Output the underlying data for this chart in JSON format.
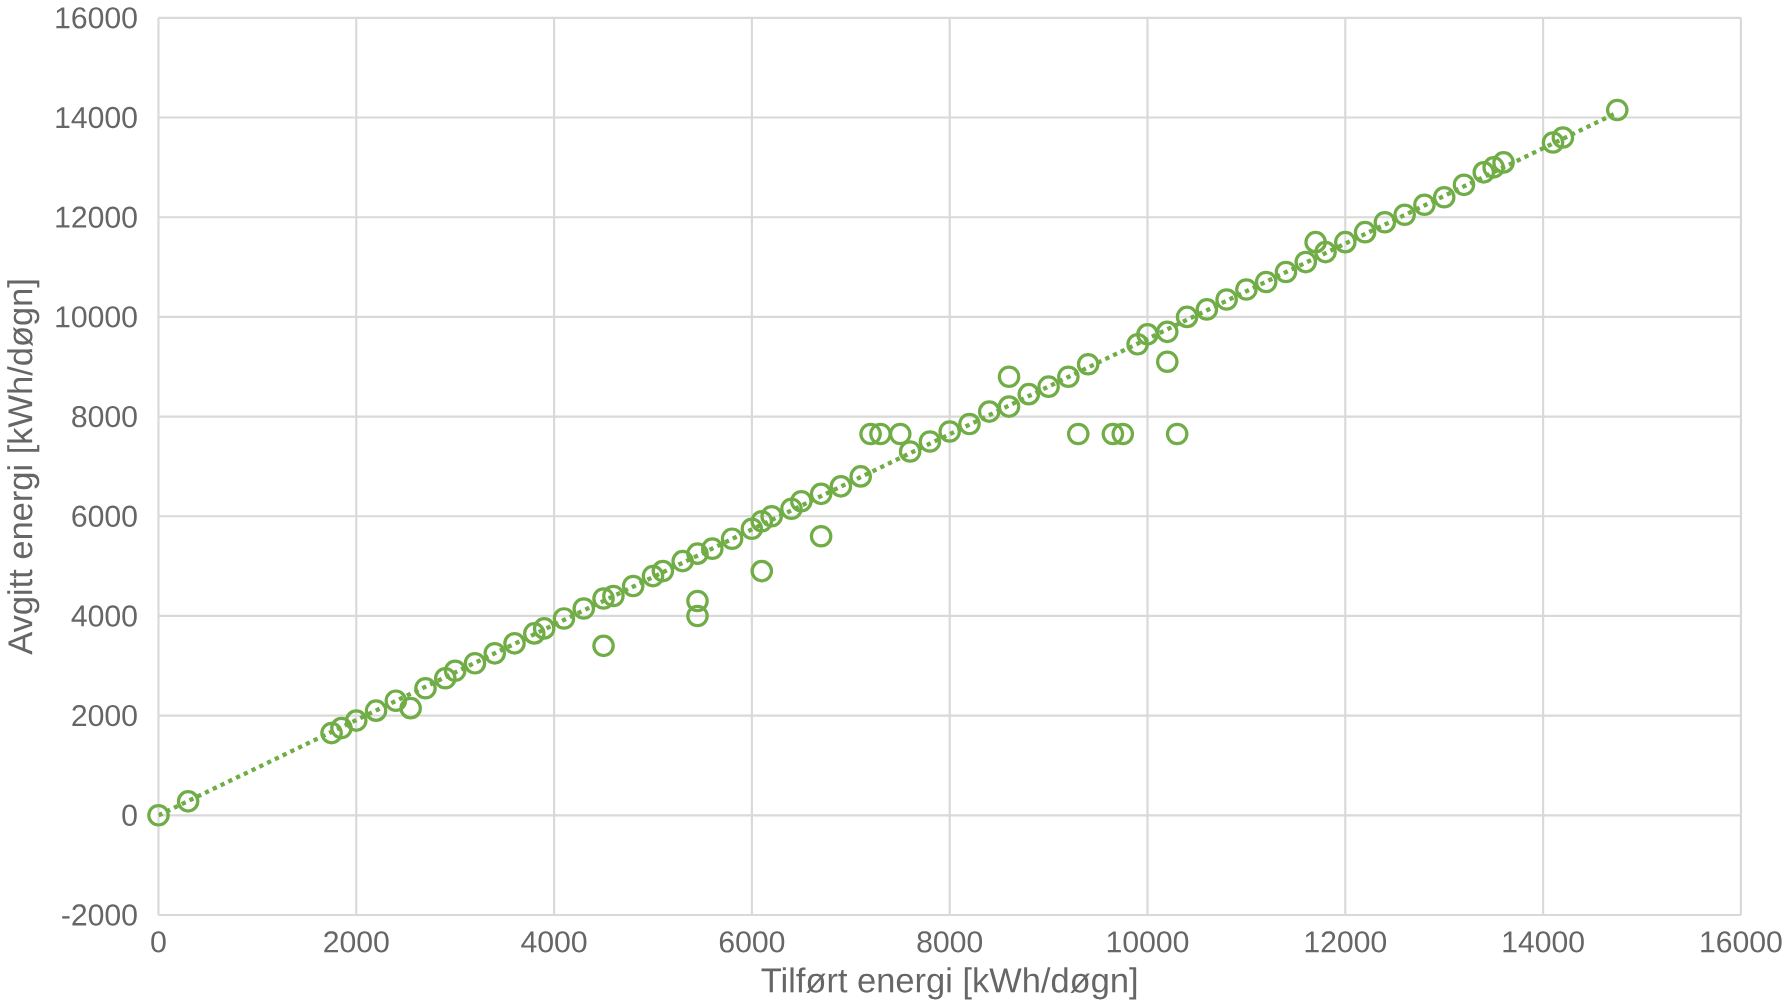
{
  "chart_data": {
    "type": "scatter",
    "xlabel": "Tilført energi [kWh/døgn]",
    "ylabel": "Avgitt energi [kWh/døgn]",
    "xlim": [
      0,
      16000
    ],
    "ylim": [
      -2000,
      16000
    ],
    "xticks": [
      0,
      2000,
      4000,
      6000,
      8000,
      10000,
      12000,
      14000,
      16000
    ],
    "yticks": [
      -2000,
      0,
      2000,
      4000,
      6000,
      8000,
      10000,
      12000,
      14000,
      16000
    ],
    "grid": true,
    "series": [
      {
        "marker": "circle",
        "color": "#70ad47",
        "x": [
          0,
          300,
          1750,
          1850,
          2000,
          2200,
          2400,
          2550,
          2700,
          2900,
          3000,
          3200,
          3400,
          3600,
          3800,
          3900,
          4100,
          4300,
          4500,
          4600,
          4800,
          5000,
          5100,
          5300,
          5450,
          5450,
          5600,
          5800,
          6000,
          6100,
          6200,
          6400,
          6500,
          6700,
          6900,
          7100,
          7200,
          7300,
          7500,
          7600,
          7800,
          8000,
          8200,
          8400,
          8600,
          8800,
          9000,
          9200,
          9300,
          9400,
          9650,
          9750,
          9900,
          10000,
          10200,
          10300,
          10400,
          10600,
          10800,
          11000,
          11200,
          11400,
          11600,
          11700,
          11800,
          12000,
          12200,
          12400,
          12600,
          12800,
          13000,
          13200,
          13400,
          13500,
          13600,
          14100,
          14200,
          14750,
          4500,
          5450,
          6100,
          6700,
          8600,
          10200
        ],
        "values": [
          0,
          280,
          1650,
          1750,
          1900,
          2100,
          2300,
          2150,
          2550,
          2750,
          2900,
          3050,
          3250,
          3450,
          3650,
          3750,
          3950,
          4150,
          4350,
          4400,
          4600,
          4800,
          4900,
          5100,
          4300,
          5250,
          5350,
          5550,
          5750,
          5900,
          6000,
          6150,
          6300,
          6450,
          6600,
          6800,
          7650,
          7650,
          7650,
          7300,
          7500,
          7700,
          7850,
          8100,
          8200,
          8450,
          8600,
          8800,
          7650,
          9050,
          7650,
          7650,
          9450,
          9650,
          9700,
          7650,
          10000,
          10150,
          10350,
          10550,
          10700,
          10900,
          11100,
          11500,
          11300,
          11500,
          11700,
          11900,
          12050,
          12250,
          12400,
          12650,
          12900,
          13000,
          13100,
          13500,
          13600,
          14150,
          3400,
          4000,
          4900,
          5600,
          8800,
          9100
        ]
      },
      {
        "type": "line",
        "marker": "none",
        "line_style": "dotted",
        "color": "#70ad47",
        "x": [
          0,
          14750
        ],
        "values": [
          0,
          14100
        ]
      }
    ]
  }
}
